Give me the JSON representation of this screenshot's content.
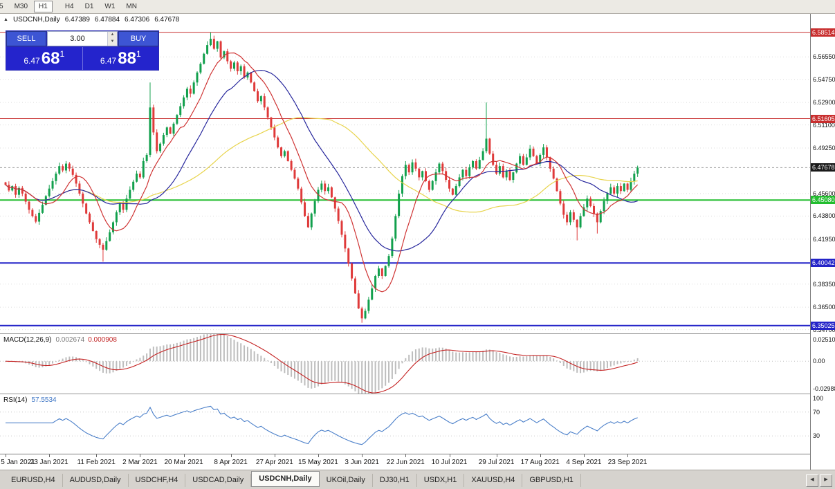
{
  "toolbar": {
    "buttons": [
      "5",
      "M30",
      "H1",
      "H4",
      "D1",
      "W1",
      "MN"
    ],
    "active": "H1"
  },
  "chart": {
    "header": {
      "symbol": "USDCNH,Daily",
      "open": "6.47389",
      "high": "6.47884",
      "low": "6.47306",
      "close": "6.47678"
    },
    "trade_panel": {
      "sell_label": "SELL",
      "buy_label": "BUY",
      "volume": "3.00",
      "bid": {
        "prefix": "6.47",
        "big": "68",
        "sup": "1"
      },
      "ask": {
        "prefix": "6.47",
        "big": "88",
        "sup": "1"
      }
    },
    "price_axis": {
      "plain_labels": [
        "6.56550",
        "6.54750",
        "6.52900",
        "6.51100",
        "6.49250",
        "6.45600",
        "6.43800",
        "6.41950",
        "6.38350",
        "6.36500",
        "6.34700"
      ],
      "current_price": {
        "label": "6.47678",
        "value": 6.47678,
        "color": "#1a1a1a"
      }
    },
    "levels": [
      {
        "label": "6.58514",
        "value": 6.58514,
        "color": "#c82e2e",
        "thickness": 1
      },
      {
        "label": "6.51605",
        "value": 6.51605,
        "color": "#c82e2e",
        "thickness": 1
      },
      {
        "label": "6.45080",
        "value": 6.4508,
        "color": "#22bd2f",
        "thickness": 2
      },
      {
        "label": "6.40042",
        "value": 6.40042,
        "color": "#2424c8",
        "thickness": 2
      },
      {
        "label": "6.35025",
        "value": 6.35025,
        "color": "#2424c8",
        "thickness": 2
      }
    ],
    "time_axis": {
      "ticks": [
        {
          "index": 0,
          "label": "5 Jan 2021"
        },
        {
          "index": 13,
          "label": "23 Jan 2021"
        },
        {
          "index": 27,
          "label": "11 Feb 2021"
        },
        {
          "index": 40,
          "label": "2 Mar 2021"
        },
        {
          "index": 53,
          "label": "20 Mar 2021"
        },
        {
          "index": 67,
          "label": "8 Apr 2021"
        },
        {
          "index": 80,
          "label": "27 Apr 2021"
        },
        {
          "index": 93,
          "label": "15 May 2021"
        },
        {
          "index": 106,
          "label": "3 Jun 2021"
        },
        {
          "index": 119,
          "label": "22 Jun 2021"
        },
        {
          "index": 132,
          "label": "10 Jul 2021"
        },
        {
          "index": 146,
          "label": "29 Jul 2021"
        },
        {
          "index": 159,
          "label": "17 Aug 2021"
        },
        {
          "index": 172,
          "label": "4 Sep 2021"
        },
        {
          "index": 185,
          "label": "23 Sep 2021"
        }
      ]
    }
  },
  "chart_data": {
    "type": "candlestick",
    "symbol": "USDCNH",
    "timeframe": "Daily",
    "price_range": [
      6.344,
      6.6
    ],
    "bull_color": "#12a04d",
    "bear_color": "#df3a3a",
    "grid_color": "#dcdcdc",
    "closes": [
      6.463,
      6.4585,
      6.462,
      6.455,
      6.4605,
      6.456,
      6.4495,
      6.443,
      6.438,
      6.4335,
      6.4405,
      6.447,
      6.454,
      6.46,
      6.466,
      6.472,
      6.478,
      6.4745,
      6.48,
      6.476,
      6.471,
      6.464,
      6.456,
      6.448,
      6.44,
      6.433,
      6.426,
      6.4195,
      6.415,
      6.411,
      6.418,
      6.425,
      6.433,
      6.441,
      6.448,
      6.443,
      6.452,
      6.459,
      6.4655,
      6.472,
      6.469,
      6.482,
      6.487,
      6.525,
      6.505,
      6.49,
      6.496,
      6.503,
      6.509,
      6.504,
      6.512,
      6.519,
      6.526,
      6.533,
      6.54,
      6.536,
      6.545,
      6.553,
      6.56,
      6.568,
      6.575,
      6.58,
      6.572,
      6.578,
      6.565,
      6.57,
      6.562,
      6.556,
      6.561,
      6.554,
      6.558,
      6.549,
      6.553,
      6.545,
      6.538,
      6.53,
      6.534,
      6.525,
      6.517,
      6.509,
      6.501,
      6.493,
      6.486,
      6.49,
      6.482,
      6.475,
      6.468,
      6.46,
      6.449,
      6.438,
      6.429,
      6.44,
      6.45,
      6.459,
      6.464,
      6.458,
      6.461,
      6.453,
      6.444,
      6.434,
      6.423,
      6.412,
      6.4,
      6.388,
      6.376,
      6.364,
      6.356,
      6.362,
      6.371,
      6.38,
      6.39,
      6.396,
      6.39,
      6.398,
      6.406,
      6.42,
      6.438,
      6.456,
      6.47,
      6.479,
      6.473,
      6.481,
      6.476,
      6.469,
      6.474,
      6.466,
      6.459,
      6.466,
      6.473,
      6.48,
      6.474,
      6.467,
      6.46,
      6.455,
      6.462,
      6.469,
      6.475,
      6.47,
      6.477,
      6.482,
      6.476,
      6.483,
      6.49,
      6.5,
      6.488,
      6.479,
      6.472,
      6.478,
      6.469,
      6.474,
      6.467,
      6.473,
      6.48,
      6.486,
      6.479,
      6.485,
      6.492,
      6.486,
      6.48,
      6.487,
      6.493,
      6.485,
      6.476,
      6.468,
      6.458,
      6.448,
      6.439,
      6.433,
      6.441,
      6.435,
      6.429,
      6.438,
      6.445,
      6.452,
      6.446,
      6.44,
      6.433,
      6.442,
      6.45,
      6.456,
      6.461,
      6.456,
      6.462,
      6.458,
      6.464,
      6.459,
      6.466,
      6.472,
      6.47678
    ],
    "wick_overrides": [
      {
        "i": 29,
        "low": 6.4015
      },
      {
        "i": 43,
        "high": 6.545
      },
      {
        "i": 60,
        "high": 6.578
      },
      {
        "i": 61,
        "high": 6.58514
      },
      {
        "i": 106,
        "low": 6.3525
      },
      {
        "i": 143,
        "high": 6.529
      },
      {
        "i": 170,
        "low": 6.4185
      },
      {
        "i": 176,
        "low": 6.424
      }
    ],
    "indicators": {
      "moving_averages": [
        {
          "period": 10,
          "color": "#cf3333"
        },
        {
          "period": 24,
          "color": "#26269c"
        },
        {
          "period": 55,
          "color": "#e8d44c"
        }
      ],
      "macd": {
        "label": "MACD(12,26,9)",
        "fast": 12,
        "slow": 26,
        "signal": 9,
        "value": "0.002674",
        "signal_value": "0.000908",
        "axis_top": "0.02510",
        "axis_zero": "0.00",
        "axis_bottom": "-0.02988",
        "scale_max": 0.0251,
        "scale_min": -0.0299,
        "histogram_color": "#bdbdbd",
        "signal_color": "#c42222"
      },
      "rsi": {
        "label": "RSI(14)",
        "period": 14,
        "value": "57.5534",
        "axis_labels": [
          "100",
          "70",
          "30"
        ],
        "levels": [
          70,
          30
        ],
        "color": "#4a7fc9"
      }
    }
  },
  "tabs": {
    "items": [
      "EURUSD,H4",
      "AUDUSD,Daily",
      "USDCHF,H4",
      "USDCAD,Daily",
      "USDCNH,Daily",
      "UKOil,Daily",
      "DJ30,H1",
      "USDX,H1",
      "XAUUSD,H4",
      "GBPUSD,H1"
    ],
    "active": "USDCNH,Daily",
    "scroll_left": "◀",
    "scroll_right": "▶"
  }
}
